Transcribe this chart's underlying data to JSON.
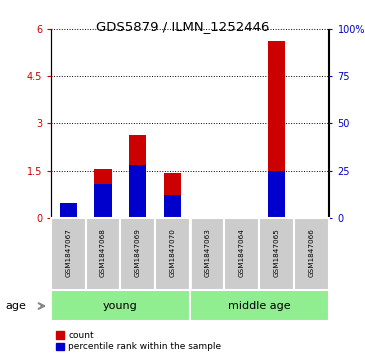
{
  "title": "GDS5879 / ILMN_1252446",
  "samples": [
    "GSM1847067",
    "GSM1847068",
    "GSM1847069",
    "GSM1847070",
    "GSM1847063",
    "GSM1847064",
    "GSM1847065",
    "GSM1847066"
  ],
  "count_values": [
    0.12,
    1.55,
    2.62,
    1.42,
    0.0,
    0.02,
    5.62,
    0.02
  ],
  "percentile_values": [
    8.0,
    18.0,
    28.0,
    12.0,
    0.0,
    0.0,
    25.0,
    0.0
  ],
  "groups": [
    {
      "name": "young",
      "indices": [
        0,
        1,
        2,
        3
      ]
    },
    {
      "name": "middle age",
      "indices": [
        4,
        5,
        6,
        7
      ]
    }
  ],
  "bar_color_count": "#cc0000",
  "bar_color_percentile": "#0000cc",
  "ylim_left": [
    0,
    6
  ],
  "ylim_right": [
    0,
    100
  ],
  "yticks_left": [
    0,
    1.5,
    3.0,
    4.5,
    6.0
  ],
  "ytick_labels_left": [
    "0",
    "1.5",
    "3",
    "4.5",
    "6"
  ],
  "yticks_right": [
    0,
    25,
    50,
    75,
    100
  ],
  "ytick_labels_right": [
    "0",
    "25",
    "50",
    "75",
    "100%"
  ],
  "age_label": "age",
  "legend_count": "count",
  "legend_percentile": "percentile rank within the sample",
  "sample_bg_color": "#cccccc",
  "group_bg_color": "#90EE90",
  "bar_width": 0.5
}
